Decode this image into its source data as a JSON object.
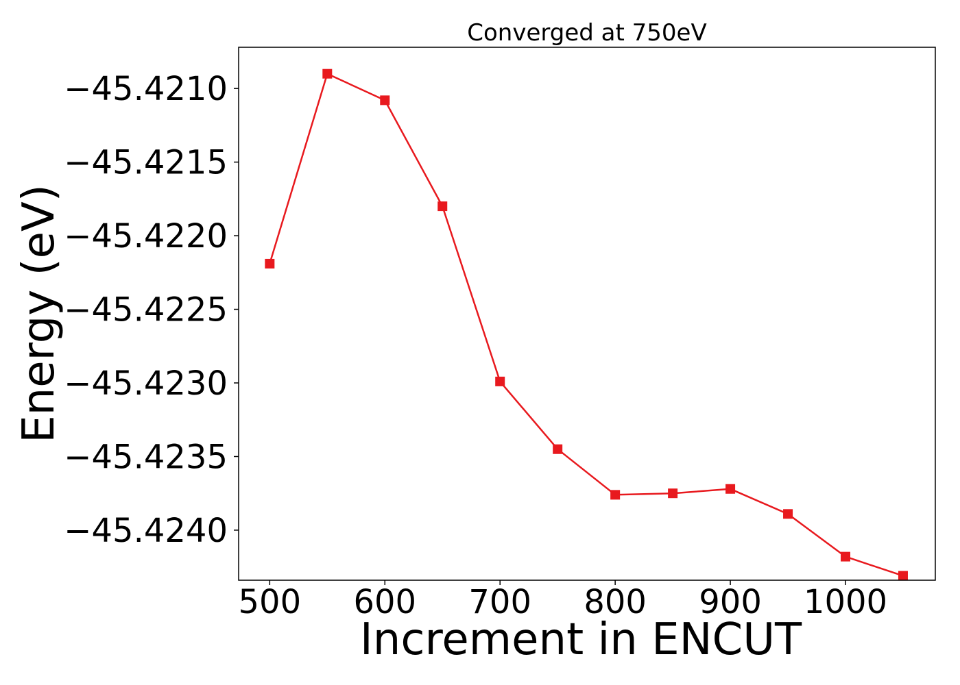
{
  "chart_data": {
    "type": "line",
    "title": "Converged at 750eV",
    "xlabel": "Increment in ENCUT",
    "ylabel": "Energy (eV)",
    "xlim": [
      473,
      1078
    ],
    "ylim": [
      -45.42434,
      -45.42072
    ],
    "x_ticks": [
      500,
      600,
      700,
      800,
      900,
      1000
    ],
    "x_tick_labels": [
      "500",
      "600",
      "700",
      "800",
      "900",
      "1000"
    ],
    "y_ticks": [
      -45.421,
      -45.4215,
      -45.422,
      -45.4225,
      -45.423,
      -45.4235,
      -45.424
    ],
    "y_tick_labels": [
      "−45.4210",
      "−45.4215",
      "−45.4220",
      "−45.4225",
      "−45.4230",
      "−45.4235",
      "−45.4240"
    ],
    "grid": false,
    "series": [
      {
        "color": "#e8191e",
        "marker": "square",
        "x": [
          500,
          550,
          600,
          650,
          700,
          750,
          800,
          850,
          900,
          950,
          1000,
          1050
        ],
        "y": [
          -45.42219,
          -45.4209,
          -45.42108,
          -45.4218,
          -45.42299,
          -45.42345,
          -45.42376,
          -45.42375,
          -45.42372,
          -45.42389,
          -45.42418,
          -45.42431
        ]
      }
    ]
  }
}
